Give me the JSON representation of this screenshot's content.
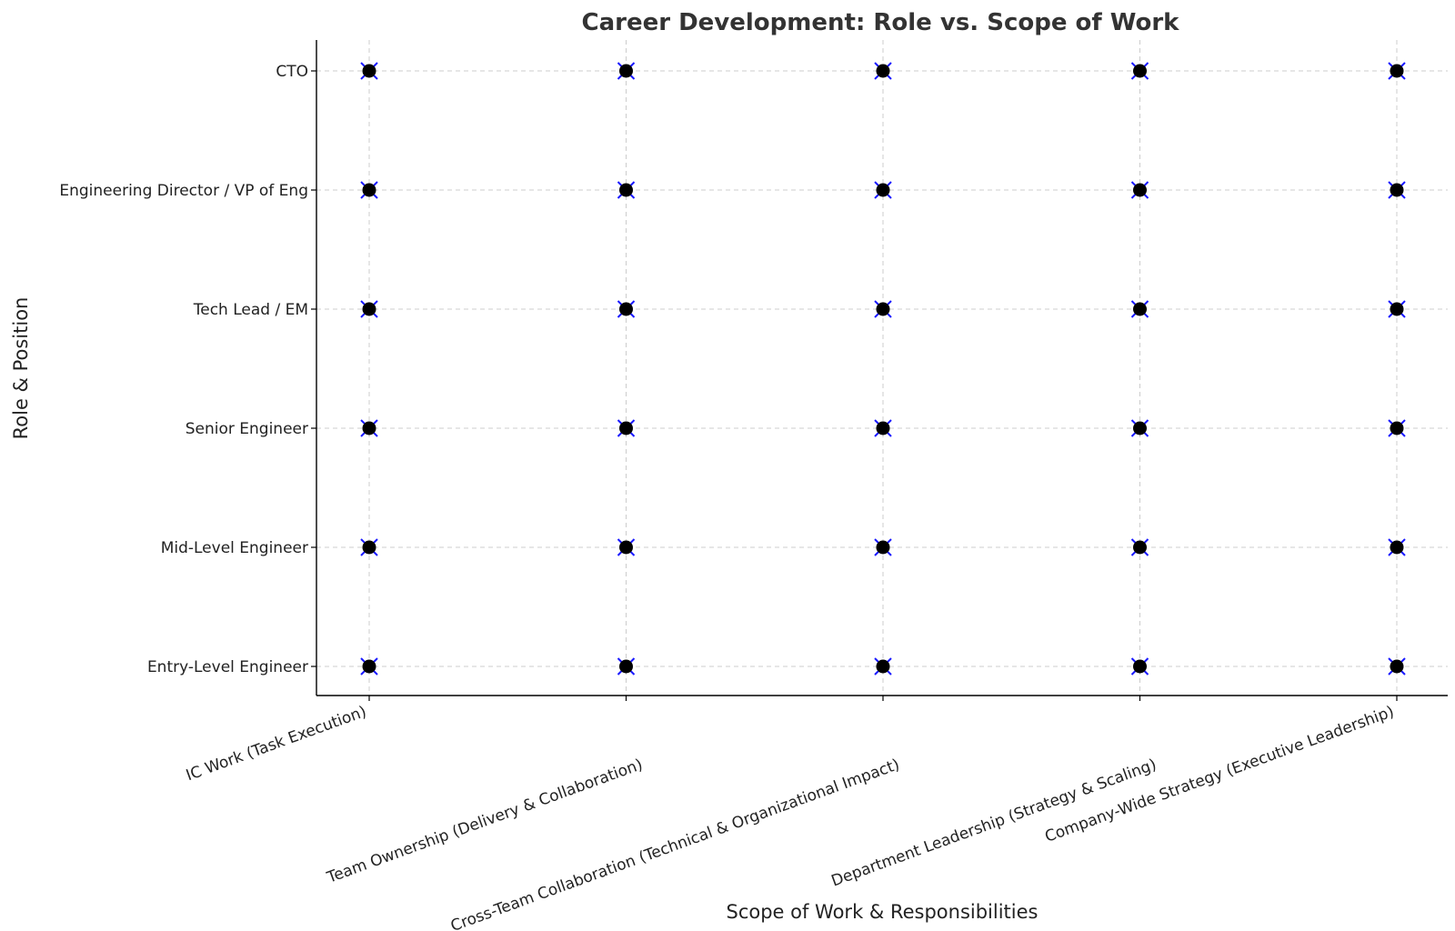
{
  "chart_data": {
    "type": "scatter",
    "title": "Career Development: Role vs. Scope of Work",
    "xlabel": "Scope of Work & Responsibilities",
    "ylabel": "Role & Position",
    "x_categories": [
      "IC Work (Task Execution)",
      "Team Ownership (Delivery & Collaboration)",
      "Cross-Team Collaboration (Technical & Organizational Impact)",
      "Department Leadership (Strategy & Scaling)",
      "Company-Wide Strategy (Executive Leadership)"
    ],
    "y_categories": [
      "Entry-Level Engineer",
      "Mid-Level Engineer",
      "Senior Engineer",
      "Tech Lead / EM",
      "Engineering Director / VP of Eng",
      "CTO"
    ],
    "points_all_combinations": true,
    "grid": true,
    "legend": "none",
    "marker_colors": {
      "point": "#000000",
      "cross": "#1a1aff"
    }
  }
}
